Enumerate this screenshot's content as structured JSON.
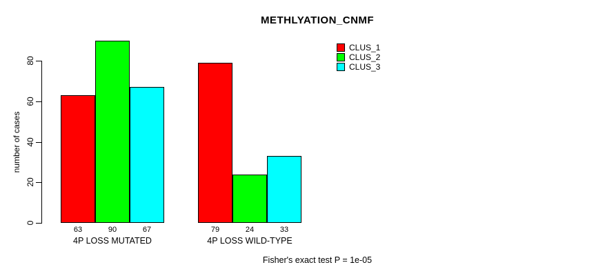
{
  "chart_data": {
    "type": "bar",
    "title": "METHLYATION_CNMF",
    "xlabel": "",
    "ylabel": "number of cases",
    "categories": [
      "4P LOSS MUTATED",
      "4P LOSS WILD-TYPE"
    ],
    "series": [
      {
        "name": "CLUS_1",
        "color": "#FF0000",
        "values": [
          63,
          79
        ]
      },
      {
        "name": "CLUS_2",
        "color": "#00FF00",
        "values": [
          90,
          24
        ]
      },
      {
        "name": "CLUS_3",
        "color": "#00FFFF",
        "values": [
          67,
          33
        ]
      }
    ],
    "y_ticks": [
      0,
      20,
      40,
      60,
      80
    ],
    "ylim": [
      0,
      90
    ],
    "bar_value_labels": [
      [
        63,
        90,
        67
      ],
      [
        79,
        24,
        33
      ]
    ],
    "legend_position": "top-right",
    "legend_entries": [
      "CLUS_1",
      "CLUS_2",
      "CLUS_3"
    ],
    "grid": false
  },
  "annotation": {
    "fisher_note": "Fisher's exact test P = 1e-05"
  },
  "colors": {
    "background": "#FFFFFF",
    "axis": "#000000",
    "text": "#000000",
    "clus_1": "#FF0000",
    "clus_2": "#00FF00",
    "clus_3": "#00FFFF"
  }
}
